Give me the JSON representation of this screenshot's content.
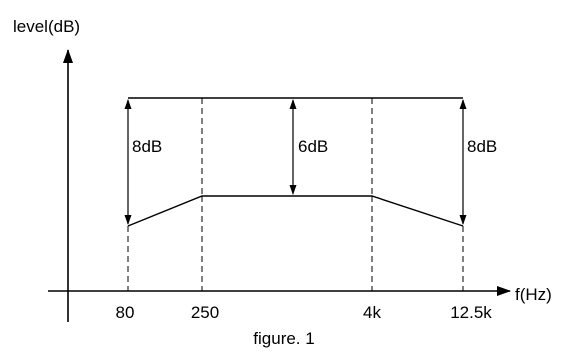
{
  "diagram": {
    "y_axis_label": "level(dB)",
    "x_axis_label": "f(Hz)",
    "caption": "figure. 1",
    "x_ticks": [
      "80",
      "250",
      "4k",
      "12.5k"
    ],
    "measurements": {
      "left": "8dB",
      "center": "6dB",
      "right": "8dB"
    },
    "colors": {
      "line": "#000000",
      "background": "#ffffff"
    }
  }
}
